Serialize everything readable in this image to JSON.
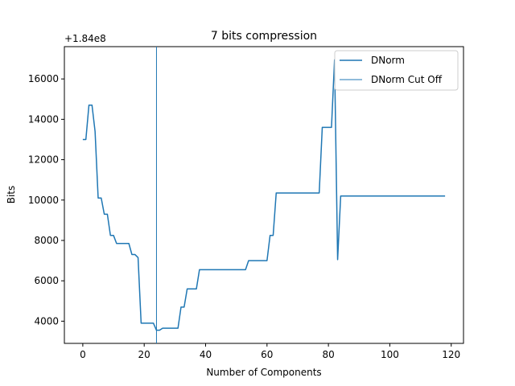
{
  "chart_data": {
    "type": "line",
    "title": "7 bits compression",
    "xlabel": "Number of Components",
    "ylabel": "Bits",
    "offset_label": "+1.84e8",
    "xlim": [
      -6,
      124
    ],
    "ylim": [
      2900,
      17600
    ],
    "xticks": [
      0,
      20,
      40,
      60,
      80,
      100,
      120
    ],
    "yticks": [
      4000,
      6000,
      8000,
      10000,
      12000,
      14000,
      16000
    ],
    "grid": false,
    "legend_position": "top-right",
    "series": [
      {
        "name": "DNorm",
        "color": "#1f77b4",
        "x": [
          0,
          1,
          2,
          3,
          4,
          5,
          6,
          7,
          8,
          9,
          10,
          11,
          12,
          13,
          14,
          15,
          16,
          17,
          18,
          19,
          20,
          21,
          22,
          23,
          24,
          25,
          26,
          27,
          28,
          29,
          30,
          31,
          32,
          33,
          34,
          35,
          36,
          37,
          38,
          39,
          40,
          41,
          42,
          43,
          44,
          45,
          46,
          47,
          48,
          49,
          50,
          51,
          52,
          53,
          54,
          55,
          56,
          57,
          58,
          59,
          60,
          61,
          62,
          63,
          64,
          65,
          66,
          67,
          68,
          69,
          70,
          71,
          72,
          73,
          74,
          75,
          76,
          77,
          78,
          79,
          80,
          81,
          82,
          83,
          84,
          85,
          86,
          87,
          88,
          89,
          90,
          91,
          92,
          93,
          94,
          95,
          96,
          97,
          98,
          99,
          100,
          101,
          102,
          103,
          104,
          105,
          106,
          107,
          108,
          109,
          110,
          111,
          112,
          113,
          114,
          115,
          116,
          117,
          118
        ],
        "y": [
          13000,
          13000,
          14700,
          14700,
          13400,
          10100,
          10100,
          9300,
          9300,
          8250,
          8250,
          7850,
          7850,
          7850,
          7850,
          7850,
          7300,
          7300,
          7150,
          3900,
          3900,
          3900,
          3900,
          3900,
          3550,
          3550,
          3650,
          3650,
          3650,
          3650,
          3650,
          3650,
          4700,
          4700,
          5600,
          5600,
          5600,
          5600,
          6550,
          6550,
          6550,
          6550,
          6550,
          6550,
          6550,
          6550,
          6550,
          6550,
          6550,
          6550,
          6550,
          6550,
          6550,
          6550,
          7000,
          7000,
          7000,
          7000,
          7000,
          7000,
          7000,
          8250,
          8250,
          10350,
          10350,
          10350,
          10350,
          10350,
          10350,
          10350,
          10350,
          10350,
          10350,
          10350,
          10350,
          10350,
          10350,
          10350,
          13600,
          13600,
          13600,
          13600,
          16950,
          7050,
          10200,
          10200,
          10200,
          10200,
          10200,
          10200,
          10200,
          10200,
          10200,
          10200,
          10200,
          10200,
          10200,
          10200,
          10200,
          10200,
          10200,
          10200,
          10200,
          10200,
          10200,
          10200,
          10200,
          10200,
          10200,
          10200,
          10200,
          10200,
          10200,
          10200,
          10200,
          10200,
          10200,
          10200,
          10200
        ]
      },
      {
        "name": "DNorm Cut Off",
        "color": "#1f77b4",
        "type": "vline",
        "x": 24
      }
    ]
  }
}
